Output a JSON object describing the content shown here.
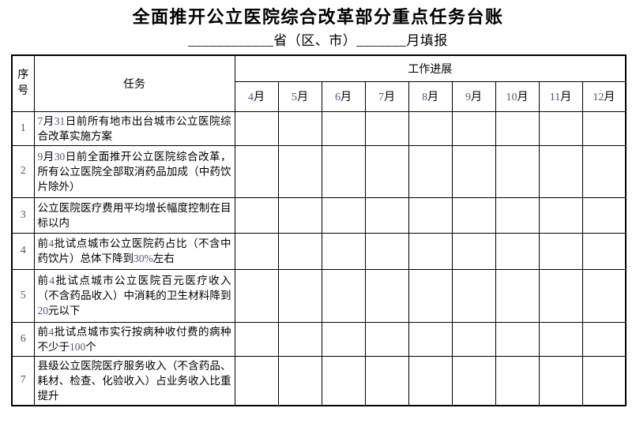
{
  "title": "全面推开公立医院综合改革部分重点任务台账",
  "subtitle": "____________省（区、市）_______月填报",
  "table": {
    "header": {
      "serial": "序号",
      "task": "任务",
      "progress": "工作进展",
      "months": [
        "4月",
        "5月",
        "6月",
        "7月",
        "8月",
        "9月",
        "10月",
        "11月",
        "12月"
      ]
    },
    "rows": [
      {
        "no": "1",
        "task": "7月31日前所有地市出台城市公立医院综合改革实施方案"
      },
      {
        "no": "2",
        "task": "9月30日前全面推开公立医院综合改革，所有公立医院全部取消药品加成（中药饮片除外）"
      },
      {
        "no": "3",
        "task": "公立医院医疗费用平均增长幅度控制在目标以内"
      },
      {
        "no": "4",
        "task": "前4批试点城市公立医院药占比（不含中药饮片）总体下降到30%左右"
      },
      {
        "no": "5",
        "task": "前4批试点城市公立医院百元医疗收入（不含药品收入）中消耗的卫生材料降到20元以下"
      },
      {
        "no": "6",
        "task": "前4批试点城市实行按病种收付费的病种不少于100个"
      },
      {
        "no": "7",
        "task": "县级公立医院医疗服务收入（不含药品、耗材、检查、化验收入）占业务收入比重提升"
      }
    ]
  }
}
